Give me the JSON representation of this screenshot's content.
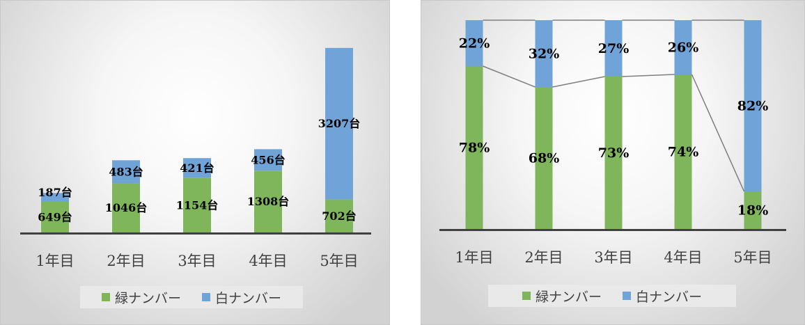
{
  "colors": {
    "green": "#7fb65c",
    "blue": "#70a3d8",
    "axis": "#404040",
    "connector": "#7f7f7f"
  },
  "legend": {
    "green_label": "緑ナンバー",
    "blue_label": "白ナンバー"
  },
  "chart_data": [
    {
      "type": "bar",
      "stacked": true,
      "categories": [
        "1年目",
        "2年目",
        "3年目",
        "4年目",
        "5年目"
      ],
      "series": [
        {
          "name": "緑ナンバー",
          "values": [
            649,
            1046,
            1154,
            1308,
            702
          ],
          "labels": [
            "649台",
            "1046台",
            "1154台",
            "1308台",
            "702台"
          ]
        },
        {
          "name": "白ナンバー",
          "values": [
            187,
            483,
            421,
            456,
            3207
          ],
          "labels": [
            "187台",
            "483台",
            "421台",
            "456台",
            "3207台"
          ]
        }
      ],
      "ylim": [
        0,
        4600
      ],
      "grid": false,
      "legend_position": "bottom"
    },
    {
      "type": "bar",
      "stacked": true,
      "percent": true,
      "categories": [
        "1年目",
        "2年目",
        "3年目",
        "4年目",
        "5年目"
      ],
      "series": [
        {
          "name": "緑ナンバー",
          "values": [
            78,
            68,
            73,
            74,
            18
          ],
          "labels": [
            "78%",
            "68%",
            "73%",
            "74%",
            "18%"
          ]
        },
        {
          "name": "白ナンバー",
          "values": [
            22,
            32,
            27,
            26,
            82
          ],
          "labels": [
            "22%",
            "32%",
            "27%",
            "26%",
            "82%"
          ]
        }
      ],
      "ylim": [
        0,
        100
      ],
      "series_lines": true,
      "grid": false,
      "legend_position": "bottom"
    }
  ]
}
